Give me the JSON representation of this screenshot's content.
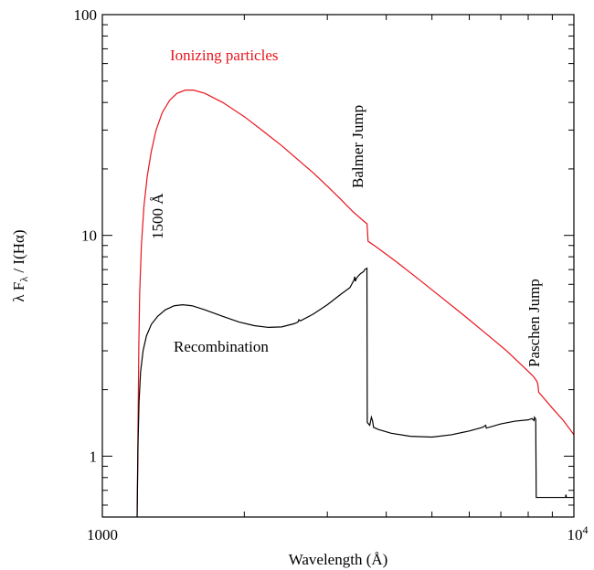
{
  "chart_data": {
    "type": "line",
    "xscale": "log",
    "yscale": "log",
    "xlim": [
      1000,
      10000
    ],
    "ylim": [
      0.53,
      100
    ],
    "xlabel": "Wavelength (Å)",
    "ylabel": "λ F",
    "ylabel_sub": "λ",
    "ylabel_rest": " / I(Hα)",
    "xticks": [
      {
        "value": 1000,
        "label": "1000"
      },
      {
        "value": 10000,
        "label": "10",
        "sup": "4"
      }
    ],
    "yticks": [
      {
        "value": 1,
        "label": "1"
      },
      {
        "value": 10,
        "label": "10"
      },
      {
        "value": 100,
        "label": "100"
      }
    ],
    "grid": false,
    "series": [
      {
        "name": "Ionizing particles",
        "color": "#e8141c",
        "points": [
          [
            1185,
            0.53
          ],
          [
            1190,
            1.3
          ],
          [
            1195,
            3.2
          ],
          [
            1200,
            5.5
          ],
          [
            1210,
            9.0
          ],
          [
            1225,
            13.5
          ],
          [
            1245,
            18.5
          ],
          [
            1270,
            24
          ],
          [
            1300,
            30
          ],
          [
            1340,
            36
          ],
          [
            1390,
            41
          ],
          [
            1440,
            44
          ],
          [
            1500,
            45.5
          ],
          [
            1560,
            45.5
          ],
          [
            1650,
            44
          ],
          [
            1800,
            40
          ],
          [
            2000,
            34.5
          ],
          [
            2200,
            29.5
          ],
          [
            2400,
            25.5
          ],
          [
            2600,
            22.0
          ],
          [
            2800,
            19.2
          ],
          [
            3000,
            16.7
          ],
          [
            3200,
            14.6
          ],
          [
            3400,
            12.8
          ],
          [
            3600,
            11.5
          ],
          [
            3640,
            11.3
          ],
          [
            3646,
            10.9
          ],
          [
            3660,
            9.4
          ],
          [
            3800,
            8.9
          ],
          [
            4200,
            7.6
          ],
          [
            4700,
            6.3
          ],
          [
            5200,
            5.3
          ],
          [
            5800,
            4.4
          ],
          [
            6500,
            3.6
          ],
          [
            7200,
            3.0
          ],
          [
            7800,
            2.55
          ],
          [
            8200,
            2.3
          ],
          [
            8300,
            2.22
          ],
          [
            8350,
            2.18
          ],
          [
            8390,
            2.1
          ],
          [
            8420,
            1.95
          ],
          [
            9000,
            1.65
          ],
          [
            9500,
            1.45
          ],
          [
            10000,
            1.25
          ]
        ]
      },
      {
        "name": "Recombination",
        "color": "#000000",
        "points": [
          [
            1185,
            0.53
          ],
          [
            1190,
            1.1
          ],
          [
            1196,
            1.75
          ],
          [
            1205,
            2.4
          ],
          [
            1220,
            3.0
          ],
          [
            1240,
            3.5
          ],
          [
            1270,
            3.95
          ],
          [
            1310,
            4.3
          ],
          [
            1360,
            4.6
          ],
          [
            1420,
            4.8
          ],
          [
            1480,
            4.85
          ],
          [
            1550,
            4.8
          ],
          [
            1650,
            4.6
          ],
          [
            1800,
            4.3
          ],
          [
            1950,
            4.05
          ],
          [
            2100,
            3.9
          ],
          [
            2250,
            3.83
          ],
          [
            2400,
            3.85
          ],
          [
            2550,
            3.98
          ],
          [
            2600,
            4.05
          ],
          [
            2610,
            4.15
          ],
          [
            2630,
            4.1
          ],
          [
            2800,
            4.4
          ],
          [
            3000,
            4.85
          ],
          [
            3200,
            5.4
          ],
          [
            3350,
            5.8
          ],
          [
            3420,
            6.3
          ],
          [
            3430,
            6.5
          ],
          [
            3440,
            6.2
          ],
          [
            3460,
            6.4
          ],
          [
            3500,
            6.6
          ],
          [
            3540,
            6.75
          ],
          [
            3580,
            6.85
          ],
          [
            3600,
            7.0
          ],
          [
            3640,
            7.1
          ],
          [
            3646,
            1.42
          ],
          [
            3690,
            1.38
          ],
          [
            3720,
            1.5
          ],
          [
            3740,
            1.45
          ],
          [
            3760,
            1.35
          ],
          [
            3850,
            1.32
          ],
          [
            4100,
            1.27
          ],
          [
            4500,
            1.23
          ],
          [
            5000,
            1.22
          ],
          [
            5500,
            1.25
          ],
          [
            6000,
            1.3
          ],
          [
            6400,
            1.35
          ],
          [
            6500,
            1.38
          ],
          [
            6520,
            1.34
          ],
          [
            7000,
            1.4
          ],
          [
            7500,
            1.44
          ],
          [
            8000,
            1.46
          ],
          [
            8150,
            1.48
          ],
          [
            8200,
            1.46
          ],
          [
            8230,
            1.45
          ],
          [
            8250,
            1.5
          ],
          [
            8300,
            1.47
          ],
          [
            8320,
            0.65
          ],
          [
            9000,
            0.65
          ],
          [
            9600,
            0.65
          ],
          [
            9620,
            0.67
          ],
          [
            9640,
            0.65
          ],
          [
            10000,
            0.65
          ]
        ]
      }
    ],
    "annotations": [
      {
        "text": "Ionizing particles",
        "color": "#e8141c"
      },
      {
        "text": "Recombination",
        "color": "#000000"
      },
      {
        "text": "1500 Å",
        "color": "#000000"
      },
      {
        "text": "Balmer Jump",
        "color": "#000000"
      },
      {
        "text": "Paschen Jump",
        "color": "#000000"
      }
    ]
  }
}
